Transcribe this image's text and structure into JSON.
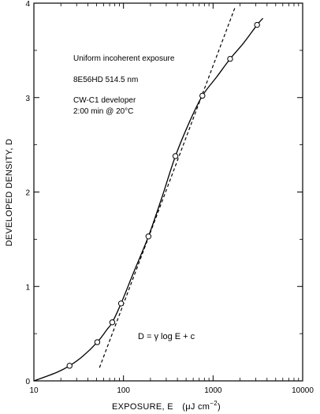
{
  "chart_data": {
    "type": "scatter",
    "x_scale": "log",
    "xlim": [
      10,
      10000
    ],
    "ylim": [
      0,
      4
    ],
    "grid": false,
    "x_ticks": [
      {
        "value": 10,
        "label": "10"
      },
      {
        "value": 100,
        "label": "100"
      },
      {
        "value": 1000,
        "label": "1000"
      },
      {
        "value": 10000,
        "label": "10000"
      }
    ],
    "y_ticks": [
      {
        "value": 0,
        "label": "0"
      },
      {
        "value": 1,
        "label": "1"
      },
      {
        "value": 2,
        "label": "2"
      },
      {
        "value": 3,
        "label": "3"
      },
      {
        "value": 4,
        "label": "4"
      }
    ],
    "xlabel": {
      "main": "EXPOSURE, E",
      "unit": "(μJ cm",
      "exp": "−2",
      "close": ")"
    },
    "ylabel": "DEVELOPED DENSITY, D",
    "annotations": [
      "Uniform incoherent exposure",
      "8E56HD  514.5 nm",
      "CW-C1 developer",
      "2:00 min  @  20°C"
    ],
    "equation": {
      "left": "D  = ",
      "gamma": "γ",
      "right": " log E + c"
    },
    "series": [
      {
        "style": "markers",
        "points": [
          {
            "x": 25,
            "y": 0.16
          },
          {
            "x": 51,
            "y": 0.41
          },
          {
            "x": 75,
            "y": 0.62
          },
          {
            "x": 94,
            "y": 0.82
          },
          {
            "x": 190,
            "y": 1.53
          },
          {
            "x": 380,
            "y": 2.38
          },
          {
            "x": 760,
            "y": 3.02
          },
          {
            "x": 1550,
            "y": 3.41
          },
          {
            "x": 3100,
            "y": 3.77
          }
        ]
      },
      {
        "style": "solid-curve",
        "points": [
          {
            "x": 10,
            "y": 0.0
          },
          {
            "x": 18,
            "y": 0.09
          },
          {
            "x": 25,
            "y": 0.16
          },
          {
            "x": 35,
            "y": 0.26
          },
          {
            "x": 51,
            "y": 0.41
          },
          {
            "x": 65,
            "y": 0.54
          },
          {
            "x": 75,
            "y": 0.62
          },
          {
            "x": 94,
            "y": 0.82
          },
          {
            "x": 130,
            "y": 1.15
          },
          {
            "x": 190,
            "y": 1.53
          },
          {
            "x": 270,
            "y": 1.95
          },
          {
            "x": 380,
            "y": 2.38
          },
          {
            "x": 550,
            "y": 2.75
          },
          {
            "x": 760,
            "y": 3.02
          },
          {
            "x": 1100,
            "y": 3.22
          },
          {
            "x": 1550,
            "y": 3.41
          },
          {
            "x": 2200,
            "y": 3.58
          },
          {
            "x": 3100,
            "y": 3.77
          },
          {
            "x": 3600,
            "y": 3.84
          }
        ]
      },
      {
        "style": "dashed-line",
        "points": [
          {
            "x": 54,
            "y": 0.14
          },
          {
            "x": 1750,
            "y": 3.95
          }
        ]
      }
    ]
  }
}
